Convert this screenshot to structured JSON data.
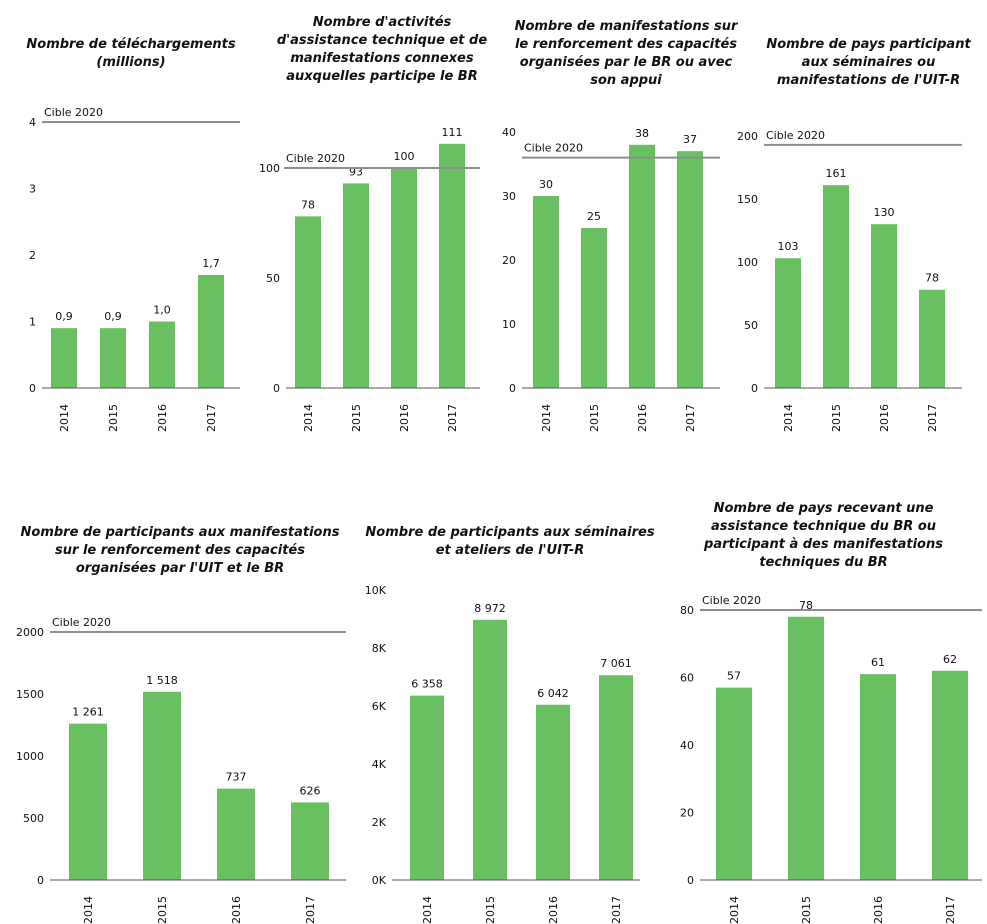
{
  "colors": {
    "bar": "#69c061",
    "target_line": "#8e8e8e",
    "axis": "#555555"
  },
  "chart_data": [
    {
      "type": "bar",
      "title": "Nombre de téléchargements\n(millions)",
      "categories": [
        "2014",
        "2015",
        "2016",
        "2017"
      ],
      "values": [
        0.9,
        0.9,
        1.0,
        1.7
      ],
      "value_labels": [
        "0,9",
        "0,9",
        "1,0",
        "1,7"
      ],
      "ylim": [
        0,
        4
      ],
      "yticks": [
        0,
        1,
        2,
        3,
        4
      ],
      "ytick_labels": [
        "0",
        "1",
        "2",
        "3",
        "4"
      ],
      "target": {
        "value": 4,
        "label": "Cible 2020"
      }
    },
    {
      "type": "bar",
      "title": "Nombre d'activités\nd'assistance technique et de\nmanifestations connexes\nauxquelles participe le BR",
      "categories": [
        "2014",
        "2015",
        "2016",
        "2017"
      ],
      "values": [
        78,
        93,
        100,
        111
      ],
      "value_labels": [
        "78",
        "93",
        "100",
        "111"
      ],
      "ylim": [
        0,
        100
      ],
      "yticks": [
        0,
        50,
        100
      ],
      "ytick_labels": [
        "0",
        "50",
        "100"
      ],
      "target": {
        "value": 100,
        "label": "Cible 2020"
      }
    },
    {
      "type": "bar",
      "title": "Nombre de manifestations sur\nle renforcement des capacités\norganisées par le BR ou avec\nson appui",
      "categories": [
        "2014",
        "2015",
        "2016",
        "2017"
      ],
      "values": [
        30,
        25,
        38,
        37
      ],
      "value_labels": [
        "30",
        "25",
        "38",
        "37"
      ],
      "ylim": [
        0,
        40
      ],
      "yticks": [
        0,
        10,
        20,
        30,
        40
      ],
      "ytick_labels": [
        "0",
        "10",
        "20",
        "30",
        "40"
      ],
      "target": {
        "value": 36,
        "label": "Cible 2020"
      }
    },
    {
      "type": "bar",
      "title": "Nombre de pays participant\naux séminaires ou\nmanifestations de l'UIT-R",
      "categories": [
        "2014",
        "2015",
        "2016",
        "2017"
      ],
      "values": [
        103,
        161,
        130,
        78
      ],
      "value_labels": [
        "103",
        "161",
        "130",
        "78"
      ],
      "ylim": [
        0,
        200
      ],
      "yticks": [
        0,
        50,
        100,
        150,
        200
      ],
      "ytick_labels": [
        "0",
        "50",
        "100",
        "150",
        "200"
      ],
      "target": {
        "value": 193,
        "label": "Cible 2020"
      }
    },
    {
      "type": "bar",
      "title": "Nombre de participants aux manifestations\nsur le renforcement des capacités\norganisées par l'UIT et le BR",
      "categories": [
        "2014",
        "2015",
        "2016",
        "2017"
      ],
      "values": [
        1261,
        1518,
        737,
        626
      ],
      "value_labels": [
        "1 261",
        "1 518",
        "737",
        "626"
      ],
      "ylim": [
        0,
        2000
      ],
      "yticks": [
        0,
        500,
        1000,
        1500,
        2000
      ],
      "ytick_labels": [
        "0",
        "500",
        "1000",
        "1500",
        "2000"
      ],
      "target": {
        "value": 2000,
        "label": "Cible 2020"
      }
    },
    {
      "type": "bar",
      "title": "Nombre de participants aux séminaires\net ateliers de l'UIT-R",
      "categories": [
        "2014",
        "2015",
        "2016",
        "2017"
      ],
      "values": [
        6358,
        8972,
        6042,
        7061
      ],
      "value_labels": [
        "6 358",
        "8 972",
        "6 042",
        "7 061"
      ],
      "ylim": [
        0,
        10000
      ],
      "yticks": [
        0,
        2000,
        4000,
        6000,
        8000,
        10000
      ],
      "ytick_labels": [
        "0K",
        "2K",
        "4K",
        "6K",
        "8K",
        "10K"
      ],
      "target": null
    },
    {
      "type": "bar",
      "title": "Nombre de pays recevant une\nassistance technique du BR ou\nparticipant à des manifestations\ntechniques du BR",
      "categories": [
        "2014",
        "2015",
        "2016",
        "2017"
      ],
      "values": [
        57,
        78,
        61,
        62
      ],
      "value_labels": [
        "57",
        "78",
        "61",
        "62"
      ],
      "ylim": [
        0,
        80
      ],
      "yticks": [
        0,
        20,
        40,
        60,
        80
      ],
      "ytick_labels": [
        "0",
        "20",
        "40",
        "60",
        "80"
      ],
      "target": {
        "value": 80,
        "label": "Cible 2020"
      }
    }
  ]
}
